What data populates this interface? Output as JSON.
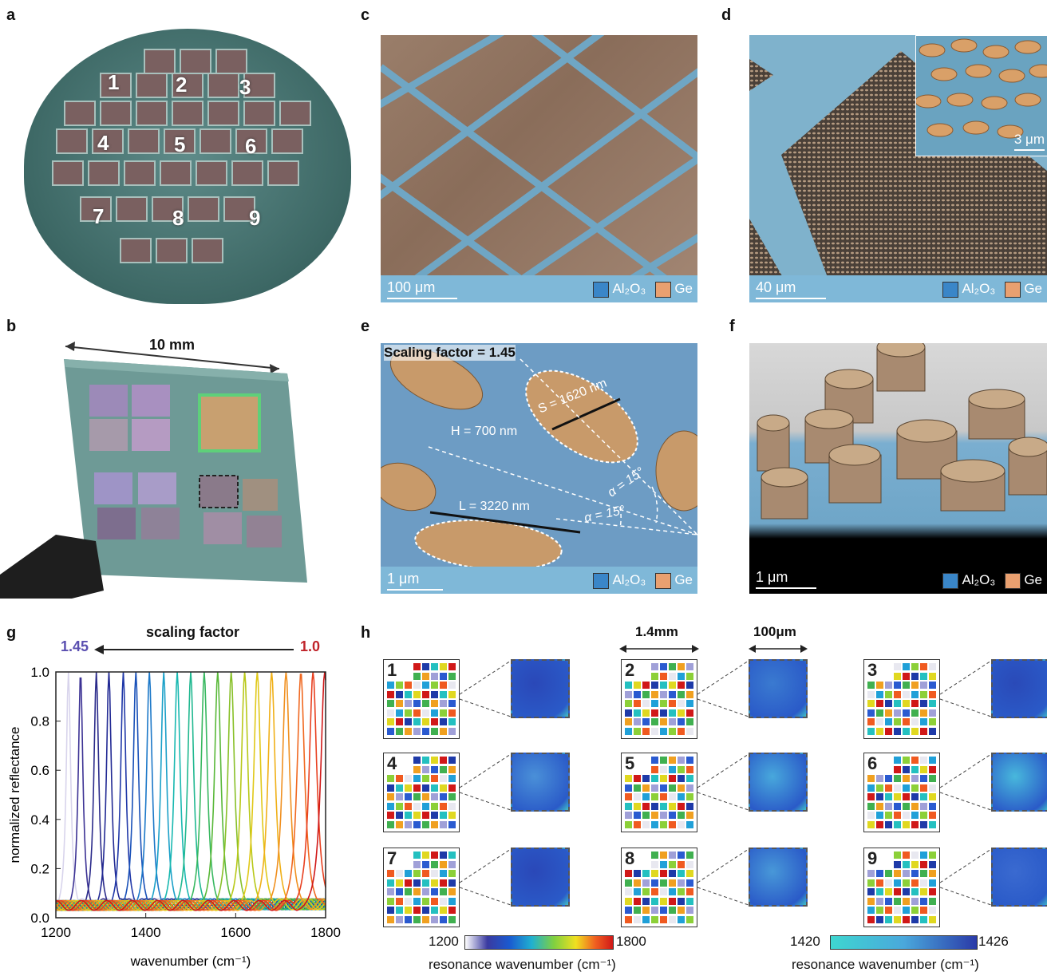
{
  "panels": {
    "a": {
      "label": "a",
      "wafer_numbers": [
        "1",
        "2",
        "3",
        "4",
        "5",
        "6",
        "7",
        "8",
        "9"
      ]
    },
    "b": {
      "label": "b",
      "dimension": "10 mm"
    },
    "c": {
      "label": "c",
      "scale": "100 μm",
      "legend": [
        "Al₂O₃",
        "Ge"
      ]
    },
    "d": {
      "label": "d",
      "scale": "40 μm",
      "inset_scale": "3 μm",
      "legend": [
        "Al₂O₃",
        "Ge"
      ]
    },
    "e": {
      "label": "e",
      "title": "Scaling factor = 1.45",
      "S": "S = 1620 nm",
      "H": "H = 700 nm",
      "L": "L = 3220 nm",
      "alpha1": "α = 15°",
      "alpha2": "α = 15°",
      "scale": "1 μm",
      "legend": [
        "Al₂O₃",
        "Ge"
      ]
    },
    "f": {
      "label": "f",
      "scale": "1 μm",
      "legend": [
        "Al₂O₃",
        "Ge"
      ]
    },
    "g": {
      "label": "g",
      "top_label": "scaling factor",
      "left_value": "1.45",
      "right_value": "1.0",
      "ylabel": "normalized reflectance",
      "xlabel": "wavenumber (cm⁻¹)"
    },
    "h": {
      "label": "h",
      "dim1": "1.4mm",
      "dim2": "100μm",
      "chips": [
        "1",
        "2",
        "3",
        "4",
        "5",
        "6",
        "7",
        "8",
        "9"
      ],
      "cbar1": {
        "min": "1200",
        "max": "1800",
        "label": "resonance wavenumber (cm⁻¹)"
      },
      "cbar2": {
        "min": "1420",
        "max": "1426",
        "label": "resonance wavenumber (cm⁻¹)"
      }
    }
  },
  "colors": {
    "al2o3": "#3a86c8",
    "ge": "#e9a070",
    "g_left": "#5a4fb0",
    "g_right": "#c0242a"
  },
  "chart_data": {
    "type": "line",
    "xlabel": "wavenumber (cm⁻¹)",
    "ylabel": "normalized reflectance",
    "xlim": [
      1200,
      1800
    ],
    "ylim": [
      0.0,
      1.0
    ],
    "xticks": [
      1200,
      1400,
      1600,
      1800
    ],
    "yticks": [
      0.0,
      0.2,
      0.4,
      0.6,
      0.8,
      1.0
    ],
    "peak_positions": [
      1228,
      1255,
      1290,
      1318,
      1350,
      1378,
      1408,
      1440,
      1470,
      1500,
      1530,
      1560,
      1590,
      1620,
      1648,
      1680,
      1712,
      1745,
      1772,
      1798
    ],
    "peak_value": 1.0,
    "baseline": 0.05
  }
}
